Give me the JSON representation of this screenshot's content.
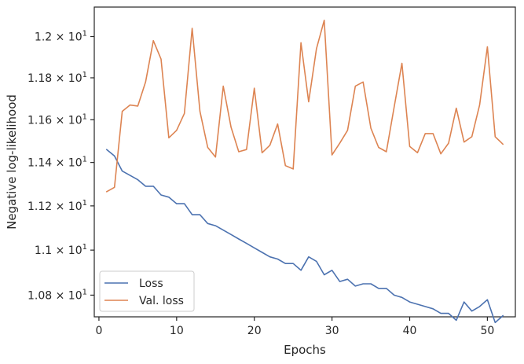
{
  "chart_data": {
    "type": "line",
    "xlabel": "Epochs",
    "ylabel": "Negative log-likelihood",
    "x": [
      1,
      2,
      3,
      4,
      5,
      6,
      7,
      8,
      9,
      10,
      11,
      12,
      13,
      14,
      15,
      16,
      17,
      18,
      19,
      20,
      21,
      22,
      23,
      24,
      25,
      26,
      27,
      28,
      29,
      30,
      31,
      32,
      33,
      34,
      35,
      36,
      37,
      38,
      39,
      40,
      41,
      42,
      43,
      44,
      45,
      46,
      47,
      48,
      49,
      50,
      51,
      52
    ],
    "series": [
      {
        "name": "Loss",
        "color": "#4c72b0",
        "values": [
          11.46,
          11.43,
          11.36,
          11.34,
          11.32,
          11.29,
          11.29,
          11.25,
          11.24,
          11.21,
          11.21,
          11.16,
          11.16,
          11.12,
          11.11,
          11.09,
          11.07,
          11.05,
          11.03,
          11.01,
          10.99,
          10.97,
          10.96,
          10.94,
          10.94,
          10.91,
          10.97,
          10.95,
          10.89,
          10.91,
          10.86,
          10.87,
          10.84,
          10.85,
          10.85,
          10.83,
          10.83,
          10.8,
          10.79,
          10.77,
          10.76,
          10.75,
          10.74,
          10.72,
          10.72,
          10.69,
          10.77,
          10.73,
          10.75,
          10.78,
          10.68,
          10.71
        ]
      },
      {
        "name": "Val. loss",
        "color": "#dd8452",
        "values": [
          11.265,
          11.285,
          11.64,
          11.67,
          11.665,
          11.78,
          11.98,
          11.89,
          11.515,
          11.55,
          11.63,
          12.04,
          11.64,
          11.47,
          11.425,
          11.76,
          11.565,
          11.45,
          11.46,
          11.75,
          11.445,
          11.48,
          11.58,
          11.385,
          11.37,
          11.97,
          11.685,
          11.94,
          12.08,
          11.435,
          11.49,
          11.55,
          11.76,
          11.78,
          11.56,
          11.47,
          11.45,
          11.66,
          11.87,
          11.475,
          11.445,
          11.535,
          11.535,
          11.44,
          11.49,
          11.655,
          11.495,
          11.52,
          11.67,
          11.95,
          11.52,
          11.485
        ]
      }
    ],
    "xlim": [
      -0.6,
      53.6
    ],
    "ylim": [
      10.705,
      12.145
    ],
    "xticks": [
      0,
      10,
      20,
      30,
      40,
      50
    ],
    "xtick_labels": [
      "0",
      "10",
      "20",
      "30",
      "40",
      "50"
    ],
    "yticks": [
      10.8,
      11.0,
      11.2,
      11.4,
      11.6,
      11.8,
      12.0
    ],
    "ytick_labels": [
      {
        "mant": "1.08",
        "exp": "1"
      },
      {
        "mant": "1.1",
        "exp": "1"
      },
      {
        "mant": "1.12",
        "exp": "1"
      },
      {
        "mant": "1.14",
        "exp": "1"
      },
      {
        "mant": "1.16",
        "exp": "1"
      },
      {
        "mant": "1.18",
        "exp": "1"
      },
      {
        "mant": "1.2",
        "exp": "1"
      }
    ],
    "y_scale": "log",
    "grid": false,
    "legend_position": "lower-left"
  }
}
